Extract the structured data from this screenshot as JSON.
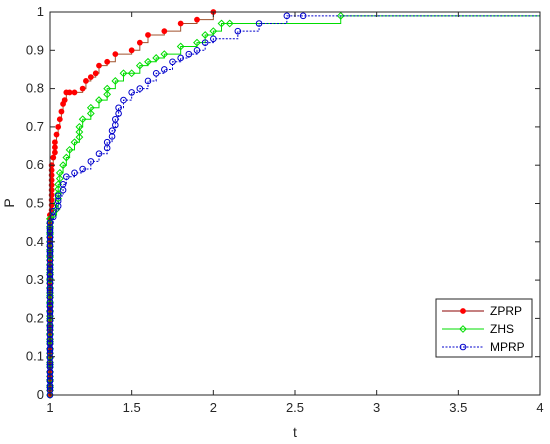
{
  "chart_data": {
    "type": "line",
    "step": true,
    "xlabel": "t",
    "ylabel": "P",
    "xlim": [
      1,
      4
    ],
    "ylim": [
      0,
      1
    ],
    "xticks": [
      1,
      1.5,
      2,
      2.5,
      3,
      3.5,
      4
    ],
    "xtick_labels": [
      "1",
      "1.5",
      "2",
      "2.5",
      "3",
      "3.5",
      "4"
    ],
    "yticks": [
      0,
      0.1,
      0.2,
      0.3,
      0.4,
      0.5,
      0.6,
      0.7,
      0.8,
      0.9,
      1
    ],
    "ytick_labels": [
      "0",
      "0.1",
      "0.2",
      "0.3",
      "0.4",
      "0.5",
      "0.6",
      "0.7",
      "0.8",
      "0.9",
      "1"
    ],
    "grid": false,
    "legend_position": "lower-right",
    "series": [
      {
        "name": "ZPRP",
        "color": "#ff0000",
        "marker": "filled-dot",
        "line_color": "#a0522d",
        "legend_line_color": "#8b0000",
        "x": [
          1,
          1,
          1.01,
          1.02,
          1.03,
          1.04,
          1.05,
          1.06,
          1.07,
          1.08,
          1.09,
          1.1,
          1.12,
          1.15,
          1.2,
          1.22,
          1.25,
          1.28,
          1.3,
          1.35,
          1.4,
          1.5,
          1.55,
          1.6,
          1.7,
          1.8,
          1.9,
          2.0
        ],
        "y": [
          0,
          0.47,
          0.6,
          0.62,
          0.66,
          0.68,
          0.7,
          0.72,
          0.74,
          0.76,
          0.77,
          0.79,
          0.79,
          0.79,
          0.8,
          0.82,
          0.83,
          0.84,
          0.86,
          0.87,
          0.89,
          0.9,
          0.92,
          0.94,
          0.95,
          0.97,
          0.98,
          1.0
        ]
      },
      {
        "name": "ZHS",
        "color": "#00dd00",
        "marker": "diamond",
        "line_color": "#00dd00",
        "legend_line_color": "#00dd00",
        "x": [
          1,
          1,
          1.02,
          1.04,
          1.05,
          1.06,
          1.08,
          1.1,
          1.12,
          1.15,
          1.18,
          1.2,
          1.25,
          1.3,
          1.35,
          1.4,
          1.45,
          1.5,
          1.55,
          1.6,
          1.65,
          1.7,
          1.8,
          1.9,
          1.95,
          2.0,
          2.05,
          2.1,
          2.78
        ],
        "y": [
          0,
          0.46,
          0.47,
          0.5,
          0.55,
          0.58,
          0.6,
          0.62,
          0.64,
          0.66,
          0.7,
          0.72,
          0.75,
          0.77,
          0.8,
          0.82,
          0.84,
          0.84,
          0.86,
          0.87,
          0.88,
          0.89,
          0.91,
          0.92,
          0.94,
          0.95,
          0.97,
          0.97,
          0.99
        ]
      },
      {
        "name": "MPRP",
        "color": "#0000cc",
        "marker": "circle",
        "line_color": "#0000cc",
        "legend_line_color": "#0000cc",
        "x": [
          1,
          1,
          1.02,
          1.05,
          1.08,
          1.1,
          1.15,
          1.2,
          1.25,
          1.3,
          1.35,
          1.38,
          1.4,
          1.42,
          1.45,
          1.5,
          1.55,
          1.6,
          1.65,
          1.7,
          1.75,
          1.8,
          1.85,
          1.9,
          1.95,
          2.0,
          2.15,
          2.28,
          2.45,
          2.55
        ],
        "y": [
          0,
          0.45,
          0.48,
          0.52,
          0.55,
          0.57,
          0.58,
          0.59,
          0.61,
          0.63,
          0.66,
          0.69,
          0.72,
          0.75,
          0.77,
          0.79,
          0.8,
          0.82,
          0.84,
          0.85,
          0.87,
          0.88,
          0.89,
          0.9,
          0.92,
          0.93,
          0.95,
          0.97,
          0.99,
          0.99
        ]
      }
    ]
  }
}
